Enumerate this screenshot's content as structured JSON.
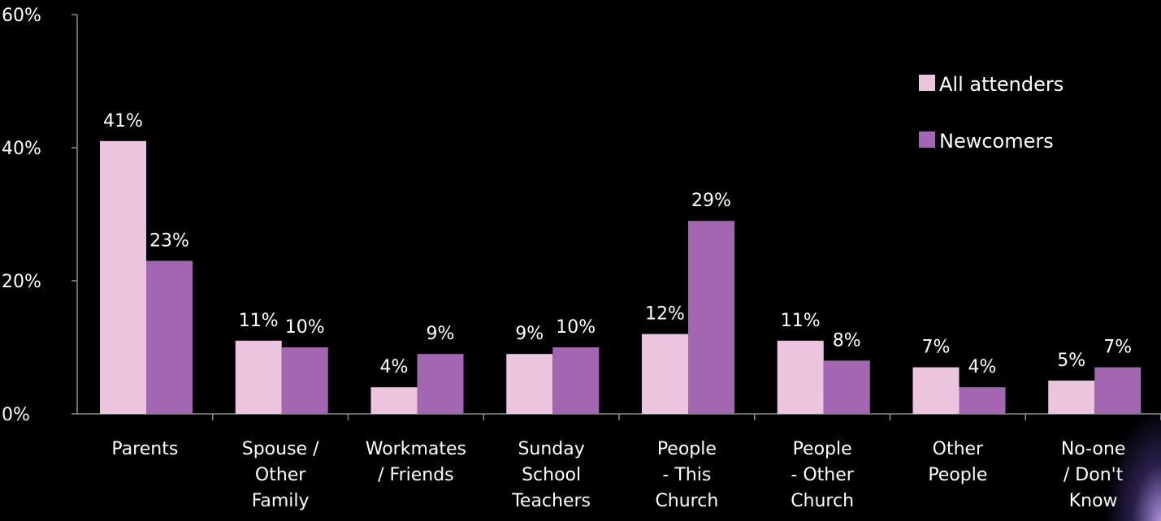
{
  "chart_data": {
    "type": "bar",
    "categories": [
      [
        "Parents"
      ],
      [
        "Spouse /",
        "Other",
        "Family"
      ],
      [
        "Workmates",
        "/ Friends"
      ],
      [
        "Sunday",
        "School",
        "Teachers"
      ],
      [
        "People",
        "- This",
        "Church"
      ],
      [
        "People",
        "- Other",
        "Church"
      ],
      [
        "Other",
        "People"
      ],
      [
        "No-one",
        "/ Don't",
        "Know"
      ]
    ],
    "series": [
      {
        "name": "All attenders",
        "color": "#EBC4DD",
        "values": [
          41,
          11,
          4,
          9,
          12,
          11,
          7,
          5
        ],
        "labels": [
          "41%",
          "11%",
          "4%",
          "9%",
          "12%",
          "11%",
          "7%",
          "5%"
        ]
      },
      {
        "name": "Newcomers",
        "color": "#A366B0",
        "values": [
          23,
          10,
          9,
          10,
          29,
          8,
          4,
          7
        ],
        "labels": [
          "23%",
          "10%",
          "9%",
          "10%",
          "29%",
          "8%",
          "4%",
          "7%"
        ]
      }
    ],
    "ylim": [
      0,
      60
    ],
    "yticks": [
      0,
      20,
      40,
      60
    ],
    "ytick_labels": [
      "0%",
      "20%",
      "40%",
      "60%"
    ],
    "legend_position": "right",
    "grid": false,
    "background": "#000000"
  }
}
